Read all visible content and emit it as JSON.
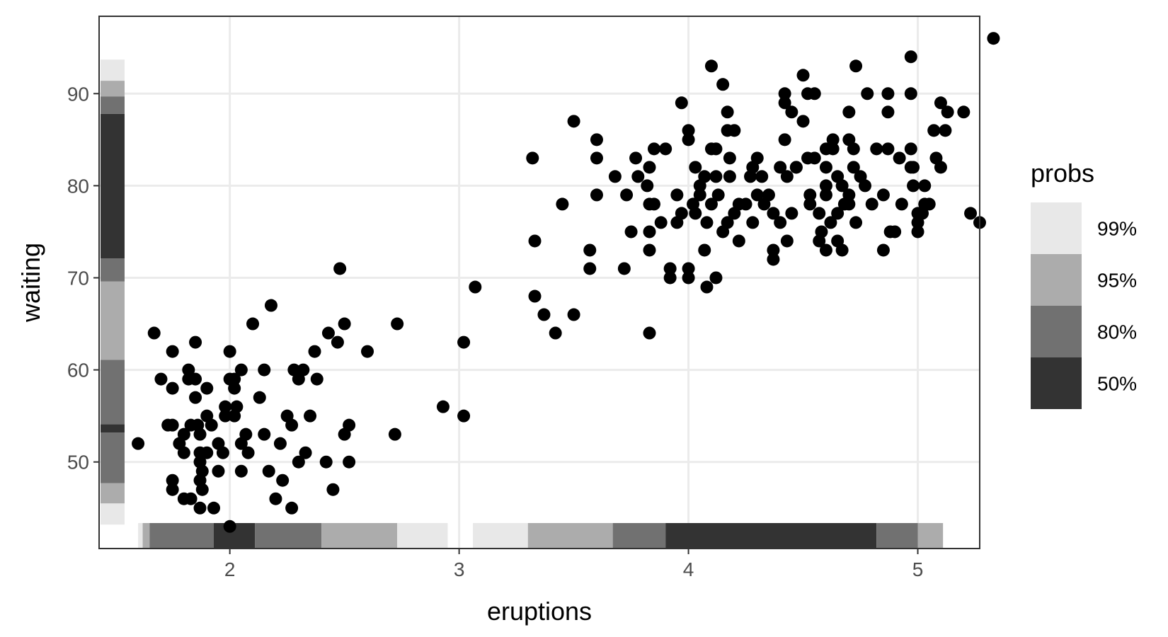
{
  "chart_data": {
    "type": "scatter",
    "xlabel": "eruptions",
    "ylabel": "waiting",
    "xlim": [
      1.43,
      5.27
    ],
    "ylim": [
      40.6,
      98.4
    ],
    "x_ticks": [
      2,
      3,
      4,
      5
    ],
    "y_ticks": [
      50,
      60,
      70,
      80,
      90
    ],
    "grid": true,
    "legend": {
      "title": "probs",
      "position": "right",
      "items": [
        {
          "label": "99%",
          "color": "#e8e8e8"
        },
        {
          "label": "95%",
          "color": "#acacac"
        },
        {
          "label": "80%",
          "color": "#717171"
        },
        {
          "label": "50%",
          "color": "#333333"
        }
      ]
    },
    "x_marginal": [
      {
        "from": 1.6,
        "to": 1.62,
        "level": "99%"
      },
      {
        "from": 1.62,
        "to": 1.65,
        "level": "95%"
      },
      {
        "from": 1.65,
        "to": 1.93,
        "level": "80%"
      },
      {
        "from": 1.93,
        "to": 2.11,
        "level": "50%"
      },
      {
        "from": 2.11,
        "to": 2.4,
        "level": "80%"
      },
      {
        "from": 2.4,
        "to": 2.73,
        "level": "95%"
      },
      {
        "from": 2.73,
        "to": 2.95,
        "level": "99%"
      },
      {
        "from": 3.06,
        "to": 3.3,
        "level": "99%"
      },
      {
        "from": 3.3,
        "to": 3.67,
        "level": "95%"
      },
      {
        "from": 3.67,
        "to": 3.9,
        "level": "80%"
      },
      {
        "from": 3.9,
        "to": 4.82,
        "level": "50%"
      },
      {
        "from": 4.82,
        "to": 5.0,
        "level": "80%"
      },
      {
        "from": 5.0,
        "to": 5.11,
        "level": "95%"
      }
    ],
    "y_marginal": [
      {
        "from": 43.2,
        "to": 45.5,
        "level": "99%"
      },
      {
        "from": 45.5,
        "to": 47.7,
        "level": "95%"
      },
      {
        "from": 47.7,
        "to": 53.2,
        "level": "80%"
      },
      {
        "from": 53.2,
        "to": 54.1,
        "level": "50%"
      },
      {
        "from": 54.1,
        "to": 61.1,
        "level": "80%"
      },
      {
        "from": 61.1,
        "to": 69.6,
        "level": "95%"
      },
      {
        "from": 69.6,
        "to": 72.1,
        "level": "80%"
      },
      {
        "from": 72.1,
        "to": 87.8,
        "level": "50%"
      },
      {
        "from": 87.8,
        "to": 89.7,
        "level": "80%"
      },
      {
        "from": 89.7,
        "to": 91.4,
        "level": "95%"
      },
      {
        "from": 91.4,
        "to": 93.7,
        "level": "99%"
      }
    ],
    "points": [
      [
        1.6,
        52
      ],
      [
        1.67,
        64
      ],
      [
        1.7,
        59
      ],
      [
        1.73,
        54
      ],
      [
        1.75,
        62
      ],
      [
        1.75,
        58
      ],
      [
        1.75,
        54
      ],
      [
        1.75,
        48
      ],
      [
        1.75,
        47
      ],
      [
        1.78,
        52
      ],
      [
        1.8,
        51
      ],
      [
        1.8,
        53
      ],
      [
        1.8,
        46
      ],
      [
        1.82,
        60
      ],
      [
        1.82,
        59
      ],
      [
        1.83,
        54
      ],
      [
        1.83,
        46
      ],
      [
        1.85,
        63
      ],
      [
        1.85,
        57
      ],
      [
        1.85,
        59
      ],
      [
        1.86,
        54
      ],
      [
        1.87,
        45
      ],
      [
        1.87,
        53
      ],
      [
        1.87,
        51
      ],
      [
        1.87,
        50
      ],
      [
        1.87,
        48
      ],
      [
        1.88,
        47
      ],
      [
        1.88,
        49
      ],
      [
        1.9,
        58
      ],
      [
        1.9,
        55
      ],
      [
        1.9,
        51
      ],
      [
        1.92,
        54
      ],
      [
        1.93,
        45
      ],
      [
        1.95,
        52
      ],
      [
        1.95,
        49
      ],
      [
        1.97,
        51
      ],
      [
        1.98,
        56
      ],
      [
        1.98,
        55
      ],
      [
        2.0,
        62
      ],
      [
        2.0,
        59
      ],
      [
        2.0,
        43
      ],
      [
        2.02,
        58
      ],
      [
        2.02,
        55
      ],
      [
        2.02,
        59
      ],
      [
        2.03,
        56
      ],
      [
        2.05,
        60
      ],
      [
        2.05,
        49
      ],
      [
        2.05,
        52
      ],
      [
        2.07,
        53
      ],
      [
        2.08,
        51
      ],
      [
        2.1,
        65
      ],
      [
        2.13,
        57
      ],
      [
        2.15,
        60
      ],
      [
        2.15,
        53
      ],
      [
        2.17,
        49
      ],
      [
        2.18,
        67
      ],
      [
        2.2,
        46
      ],
      [
        2.22,
        52
      ],
      [
        2.23,
        48
      ],
      [
        2.25,
        55
      ],
      [
        2.27,
        54
      ],
      [
        2.27,
        45
      ],
      [
        2.28,
        60
      ],
      [
        2.3,
        50
      ],
      [
        2.3,
        59
      ],
      [
        2.32,
        60
      ],
      [
        2.33,
        51
      ],
      [
        2.35,
        55
      ],
      [
        2.37,
        62
      ],
      [
        2.38,
        59
      ],
      [
        2.42,
        50
      ],
      [
        2.43,
        64
      ],
      [
        2.45,
        47
      ],
      [
        2.47,
        63
      ],
      [
        2.48,
        71
      ],
      [
        2.5,
        65
      ],
      [
        2.5,
        53
      ],
      [
        2.52,
        54
      ],
      [
        2.52,
        50
      ],
      [
        2.6,
        62
      ],
      [
        2.72,
        53
      ],
      [
        2.73,
        65
      ],
      [
        2.93,
        56
      ],
      [
        3.02,
        55
      ],
      [
        3.02,
        63
      ],
      [
        3.07,
        69
      ],
      [
        3.32,
        83
      ],
      [
        3.33,
        74
      ],
      [
        3.33,
        68
      ],
      [
        3.37,
        66
      ],
      [
        3.42,
        64
      ],
      [
        3.45,
        78
      ],
      [
        3.5,
        66
      ],
      [
        3.5,
        87
      ],
      [
        3.57,
        73
      ],
      [
        3.57,
        71
      ],
      [
        3.6,
        85
      ],
      [
        3.6,
        83
      ],
      [
        3.6,
        79
      ],
      [
        3.68,
        81
      ],
      [
        3.72,
        71
      ],
      [
        3.73,
        79
      ],
      [
        3.75,
        75
      ],
      [
        3.77,
        83
      ],
      [
        3.78,
        81
      ],
      [
        3.82,
        80
      ],
      [
        3.83,
        78
      ],
      [
        3.83,
        82
      ],
      [
        3.83,
        75
      ],
      [
        3.83,
        73
      ],
      [
        3.83,
        64
      ],
      [
        3.85,
        84
      ],
      [
        3.85,
        78
      ],
      [
        3.88,
        76
      ],
      [
        3.9,
        84
      ],
      [
        3.92,
        70
      ],
      [
        3.92,
        71
      ],
      [
        3.95,
        79
      ],
      [
        3.95,
        76
      ],
      [
        3.97,
        89
      ],
      [
        3.97,
        77
      ],
      [
        4.0,
        86
      ],
      [
        4.0,
        85
      ],
      [
        4.0,
        71
      ],
      [
        4.0,
        70
      ],
      [
        4.02,
        78
      ],
      [
        4.03,
        77
      ],
      [
        4.03,
        82
      ],
      [
        4.05,
        80
      ],
      [
        4.05,
        79
      ],
      [
        4.07,
        81
      ],
      [
        4.07,
        73
      ],
      [
        4.08,
        69
      ],
      [
        4.08,
        76
      ],
      [
        4.1,
        93
      ],
      [
        4.1,
        84
      ],
      [
        4.1,
        78
      ],
      [
        4.12,
        84
      ],
      [
        4.12,
        81
      ],
      [
        4.12,
        70
      ],
      [
        4.13,
        79
      ],
      [
        4.15,
        91
      ],
      [
        4.15,
        75
      ],
      [
        4.17,
        88
      ],
      [
        4.17,
        86
      ],
      [
        4.17,
        76
      ],
      [
        4.18,
        81
      ],
      [
        4.18,
        83
      ],
      [
        4.2,
        86
      ],
      [
        4.2,
        77
      ],
      [
        4.22,
        74
      ],
      [
        4.22,
        78
      ],
      [
        4.25,
        78
      ],
      [
        4.27,
        81
      ],
      [
        4.28,
        76
      ],
      [
        4.28,
        82
      ],
      [
        4.3,
        79
      ],
      [
        4.3,
        83
      ],
      [
        4.32,
        81
      ],
      [
        4.33,
        78
      ],
      [
        4.35,
        79
      ],
      [
        4.37,
        77
      ],
      [
        4.37,
        73
      ],
      [
        4.37,
        72
      ],
      [
        4.4,
        76
      ],
      [
        4.4,
        82
      ],
      [
        4.42,
        89
      ],
      [
        4.42,
        90
      ],
      [
        4.42,
        85
      ],
      [
        4.43,
        81
      ],
      [
        4.43,
        74
      ],
      [
        4.45,
        88
      ],
      [
        4.45,
        77
      ],
      [
        4.47,
        82
      ],
      [
        4.47,
        82
      ],
      [
        4.5,
        92
      ],
      [
        4.5,
        87
      ],
      [
        4.52,
        90
      ],
      [
        4.52,
        83
      ],
      [
        4.53,
        79
      ],
      [
        4.53,
        78
      ],
      [
        4.55,
        90
      ],
      [
        4.55,
        83
      ],
      [
        4.57,
        74
      ],
      [
        4.57,
        77
      ],
      [
        4.58,
        75
      ],
      [
        4.6,
        73
      ],
      [
        4.6,
        82
      ],
      [
        4.6,
        84
      ],
      [
        4.6,
        80
      ],
      [
        4.6,
        79
      ],
      [
        4.62,
        76
      ],
      [
        4.63,
        84
      ],
      [
        4.63,
        85
      ],
      [
        4.65,
        77
      ],
      [
        4.65,
        81
      ],
      [
        4.65,
        74
      ],
      [
        4.67,
        73
      ],
      [
        4.67,
        80
      ],
      [
        4.68,
        78
      ],
      [
        4.7,
        88
      ],
      [
        4.7,
        85
      ],
      [
        4.7,
        79
      ],
      [
        4.7,
        78
      ],
      [
        4.72,
        82
      ],
      [
        4.72,
        84
      ],
      [
        4.73,
        93
      ],
      [
        4.73,
        76
      ],
      [
        4.75,
        81
      ],
      [
        4.77,
        80
      ],
      [
        4.78,
        90
      ],
      [
        4.8,
        78
      ],
      [
        4.82,
        84
      ],
      [
        4.85,
        73
      ],
      [
        4.85,
        79
      ],
      [
        4.87,
        90
      ],
      [
        4.87,
        88
      ],
      [
        4.87,
        84
      ],
      [
        4.88,
        75
      ],
      [
        4.9,
        75
      ],
      [
        4.92,
        83
      ],
      [
        4.93,
        78
      ],
      [
        4.97,
        90
      ],
      [
        4.97,
        82
      ],
      [
        4.97,
        94
      ],
      [
        4.97,
        84
      ],
      [
        4.98,
        82
      ],
      [
        4.98,
        80
      ],
      [
        5.0,
        75
      ],
      [
        5.0,
        76
      ],
      [
        5.0,
        77
      ],
      [
        5.02,
        77
      ],
      [
        5.03,
        78
      ],
      [
        5.03,
        80
      ],
      [
        5.05,
        78
      ],
      [
        5.07,
        86
      ],
      [
        5.08,
        83
      ],
      [
        5.1,
        89
      ],
      [
        5.1,
        82
      ],
      [
        5.12,
        86
      ],
      [
        5.13,
        88
      ],
      [
        5.2,
        88
      ],
      [
        5.23,
        77
      ],
      [
        5.27,
        76
      ],
      [
        5.33,
        96
      ]
    ]
  }
}
